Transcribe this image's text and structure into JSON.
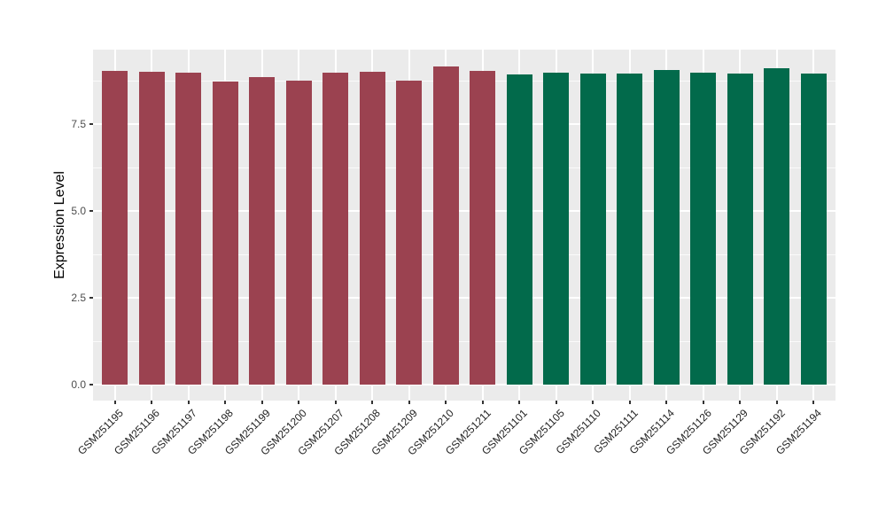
{
  "figure": {
    "background": "#FFFFFF",
    "panel_background": "#EBEBEB",
    "grid_color": "#FFFFFF",
    "axis_text_color": "#4D4D4D",
    "axis_title_color": "#000000",
    "tick_mark_color": "#333333",
    "group_colors": {
      "left_group": "#9B4250",
      "right_group": "#026A4B"
    }
  },
  "chart_data": {
    "type": "bar",
    "title": "",
    "xlabel": "",
    "ylabel": "Expression Level",
    "categories": [
      "GSM251195",
      "GSM251196",
      "GSM251197",
      "GSM251198",
      "GSM251199",
      "GSM251200",
      "GSM251207",
      "GSM251208",
      "GSM251209",
      "GSM251210",
      "GSM251211",
      "GSM251101",
      "GSM251105",
      "GSM251110",
      "GSM251111",
      "GSM251114",
      "GSM251126",
      "GSM251129",
      "GSM251192",
      "GSM251194"
    ],
    "values": [
      9.03,
      9.0,
      8.98,
      8.72,
      8.85,
      8.75,
      8.98,
      9.0,
      8.75,
      9.17,
      9.03,
      8.93,
      8.98,
      8.95,
      8.95,
      9.06,
      8.98,
      8.95,
      9.11,
      8.95
    ],
    "colors": [
      "#9B4250",
      "#9B4250",
      "#9B4250",
      "#9B4250",
      "#9B4250",
      "#9B4250",
      "#9B4250",
      "#9B4250",
      "#9B4250",
      "#9B4250",
      "#9B4250",
      "#026A4B",
      "#026A4B",
      "#026A4B",
      "#026A4B",
      "#026A4B",
      "#026A4B",
      "#026A4B",
      "#026A4B",
      "#026A4B"
    ],
    "yticks": [
      0.0,
      2.5,
      5.0,
      7.5
    ],
    "ytick_labels": [
      "0.0",
      "2.5",
      "5.0",
      "7.5"
    ],
    "yticks_minor": [
      1.25,
      3.75,
      6.25,
      8.75
    ],
    "ylim": [
      -0.46,
      9.64
    ],
    "bar_width_fraction": 0.7,
    "grid": true,
    "legend_position": "none"
  }
}
